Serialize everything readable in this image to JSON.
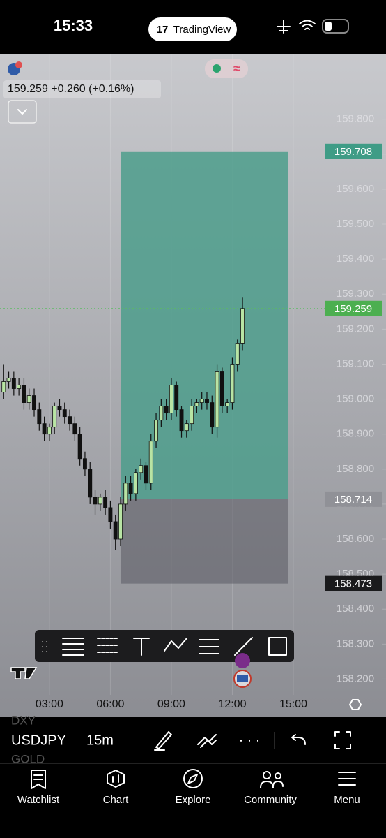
{
  "status_bar": {
    "time": "15:33",
    "app": "TradingView"
  },
  "quote": {
    "text": "159.259 +0.260 (+0.16%)"
  },
  "chart_data": {
    "type": "candlestick",
    "x": [
      0.75,
      1,
      1.25,
      1.5,
      1.75,
      2,
      2.25,
      2.5,
      2.75,
      3,
      3.25,
      3.5,
      3.75,
      4,
      4.25,
      4.5,
      4.75,
      5,
      5.25,
      5.5,
      5.75,
      6,
      6.25,
      6.5,
      6.75,
      7,
      7.25,
      7.5,
      7.75,
      8,
      8.25,
      8.5,
      8.75,
      9,
      9.25,
      9.5,
      9.75,
      10,
      10.25,
      10.5,
      10.75,
      11,
      11.25,
      11.5,
      11.75,
      12,
      12.25,
      12.5
    ],
    "open": [
      159.02,
      159.05,
      159.06,
      159.03,
      159.04,
      158.99,
      159.01,
      158.97,
      158.93,
      158.9,
      158.92,
      158.98,
      158.97,
      158.95,
      158.93,
      158.9,
      158.83,
      158.8,
      158.72,
      158.7,
      158.72,
      158.69,
      158.65,
      158.6,
      158.7,
      158.76,
      158.73,
      158.79,
      158.81,
      158.76,
      158.88,
      158.94,
      158.98,
      158.96,
      159.04,
      158.97,
      158.91,
      158.93,
      158.98,
      158.99,
      159.0,
      158.99,
      158.92,
      159.08,
      158.98,
      158.99,
      159.1,
      159.16
    ],
    "high": [
      159.1,
      159.08,
      159.08,
      159.06,
      159.06,
      159.03,
      159.03,
      158.99,
      158.95,
      158.93,
      158.99,
      159.0,
      158.99,
      158.97,
      158.95,
      158.92,
      158.85,
      158.82,
      158.74,
      158.73,
      158.74,
      158.71,
      158.67,
      158.72,
      158.78,
      158.78,
      158.8,
      158.83,
      158.82,
      158.9,
      158.96,
      159.0,
      159.0,
      159.06,
      159.05,
      158.98,
      158.94,
      159.0,
      159.0,
      159.02,
      159.02,
      159.01,
      159.1,
      159.09,
      159.0,
      159.12,
      159.17,
      159.29
    ],
    "low": [
      159.0,
      159.03,
      159.01,
      159.01,
      158.97,
      158.97,
      158.95,
      158.91,
      158.88,
      158.88,
      158.9,
      158.95,
      158.93,
      158.91,
      158.88,
      158.81,
      158.78,
      158.7,
      158.67,
      158.68,
      158.67,
      158.63,
      158.57,
      158.58,
      158.68,
      158.71,
      158.71,
      158.77,
      158.74,
      158.74,
      158.86,
      158.92,
      158.94,
      158.94,
      158.95,
      158.89,
      158.89,
      158.91,
      158.96,
      158.97,
      158.97,
      158.9,
      158.89,
      158.96,
      158.96,
      158.97,
      159.08,
      159.14
    ],
    "close": [
      159.05,
      159.06,
      159.03,
      159.04,
      158.99,
      159.01,
      158.97,
      158.93,
      158.9,
      158.92,
      158.98,
      158.97,
      158.95,
      158.93,
      158.9,
      158.83,
      158.8,
      158.72,
      158.7,
      158.72,
      158.69,
      158.65,
      158.6,
      158.7,
      158.76,
      158.73,
      158.79,
      158.81,
      158.76,
      158.88,
      158.94,
      158.98,
      158.96,
      159.04,
      158.97,
      158.91,
      158.93,
      158.98,
      158.99,
      159.0,
      158.99,
      158.92,
      159.08,
      158.98,
      158.99,
      159.1,
      159.16,
      159.259
    ],
    "up_color": "#b8e4a4",
    "down_color": "#111111",
    "xlim": [
      0.57,
      19.56
    ],
    "xticks": [
      {
        "value": 3,
        "label": "03:00"
      },
      {
        "value": 6,
        "label": "06:00"
      },
      {
        "value": 9,
        "label": "09:00"
      },
      {
        "value": 12,
        "label": "12:00"
      },
      {
        "value": 15,
        "label": "15:00"
      }
    ],
    "ylim": [
      158.155,
      159.987
    ],
    "yticks": [
      {
        "value": 158.2,
        "label": "158.200"
      },
      {
        "value": 158.3,
        "label": "158.300"
      },
      {
        "value": 158.4,
        "label": "158.400"
      },
      {
        "value": 158.5,
        "label": "158.500"
      },
      {
        "value": 158.6,
        "label": "158.600"
      },
      {
        "value": 158.7,
        "label": "158.700"
      },
      {
        "value": 158.8,
        "label": "158.800"
      },
      {
        "value": 158.9,
        "label": "158.900"
      },
      {
        "value": 159.0,
        "label": "159.000"
      },
      {
        "value": 159.1,
        "label": "159.100"
      },
      {
        "value": 159.2,
        "label": "159.200"
      },
      {
        "value": 159.3,
        "label": "159.300"
      },
      {
        "value": 159.4,
        "label": "159.400"
      },
      {
        "value": 159.5,
        "label": "159.500"
      },
      {
        "value": 159.6,
        "label": "159.600"
      },
      {
        "value": 159.7,
        "label": "159.700"
      },
      {
        "value": 159.8,
        "label": "159.800"
      }
    ],
    "last_price": 159.259,
    "position": {
      "entry": 158.714,
      "target": 159.708,
      "stop": 158.473,
      "x_start": 6.5,
      "x_end": 14.75,
      "profit_color": "#4e9e8c",
      "loss_color": "#5a5a62"
    }
  },
  "symbol_bar": {
    "prev_symbol": "DXY",
    "symbol": "USDJPY",
    "interval": "15m",
    "next_symbol": "GOLD"
  },
  "tabs": [
    "Watchlist",
    "Chart",
    "Explore",
    "Community",
    "Menu"
  ]
}
